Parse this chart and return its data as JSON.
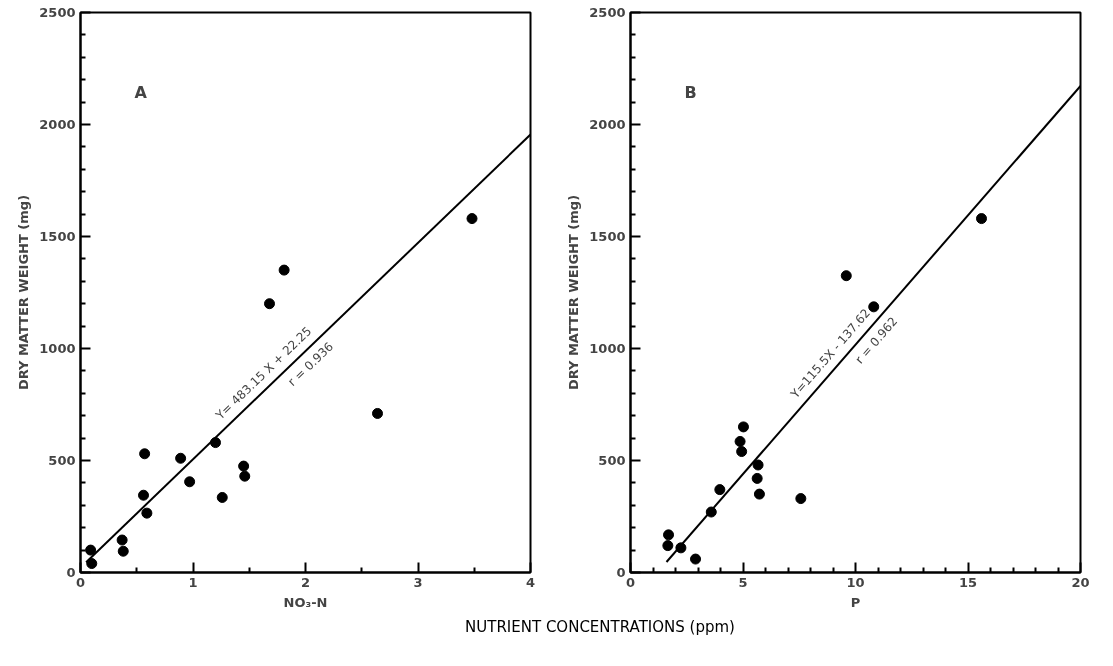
{
  "chart_data": [
    {
      "type": "scatter",
      "title": "A",
      "xlabel": "NO₃-N",
      "ylabel": "DRY MATTER WEIGHT (mg)",
      "marker": "circle",
      "grid": false,
      "xlim": [
        0,
        4
      ],
      "ylim": [
        0,
        2500
      ],
      "xticks": [
        0,
        {
          "value": 0.5,
          "label": null
        },
        1,
        {
          "value": 1.5,
          "label": null
        },
        2,
        {
          "value": 2.5,
          "label": null
        },
        3,
        {
          "value": 3.5,
          "label": null
        },
        4
      ],
      "yticks": [
        0,
        {
          "value": 100,
          "label": null
        },
        {
          "value": 200,
          "label": null
        },
        {
          "value": 300,
          "label": null
        },
        {
          "value": 400,
          "label": null
        },
        500,
        {
          "value": 600,
          "label": null
        },
        {
          "value": 700,
          "label": null
        },
        {
          "value": 800,
          "label": null
        },
        {
          "value": 900,
          "label": null
        },
        1000,
        {
          "value": 1100,
          "label": null
        },
        {
          "value": 1200,
          "label": null
        },
        {
          "value": 1300,
          "label": null
        },
        {
          "value": 1400,
          "label": null
        },
        1500,
        {
          "value": 1600,
          "label": null
        },
        {
          "value": 1700,
          "label": null
        },
        {
          "value": 1800,
          "label": null
        },
        {
          "value": 1900,
          "label": null
        },
        2000,
        {
          "value": 2100,
          "label": null
        },
        {
          "value": 2200,
          "label": null
        },
        {
          "value": 2300,
          "label": null
        },
        {
          "value": 2400,
          "label": null
        },
        2500
      ],
      "series": [
        {
          "color": "#000000",
          "x": [
            0.09,
            0.1,
            0.37,
            0.38,
            0.57,
            0.56,
            0.59,
            0.89,
            0.97,
            1.2,
            1.26,
            1.45,
            1.46,
            1.68,
            1.81,
            2.64,
            3.48
          ],
          "values": [
            100,
            40,
            145,
            95,
            530,
            345,
            265,
            510,
            405,
            580,
            335,
            475,
            430,
            1200,
            1350,
            710,
            1580
          ]
        },
        {
          "type": "line",
          "color": "#000000",
          "line_style": "solid",
          "marker": "none",
          "x": [
            0.05,
            4
          ],
          "values": [
            46,
            1955
          ]
        }
      ],
      "annotations": [
        "Y= 483.15 X + 22.25",
        "r = 0.936",
        "NUTRIENT  CONCENTRATIONS (ppm)"
      ]
    },
    {
      "type": "scatter",
      "title": "B",
      "xlabel": "P",
      "ylabel": "DRY MATTER WEIGHT (mg)",
      "marker": "circle",
      "grid": false,
      "xlim": [
        0,
        20
      ],
      "ylim": [
        0,
        2500
      ],
      "xticks": [
        0,
        {
          "value": 1,
          "label": null
        },
        {
          "value": 2,
          "label": null
        },
        {
          "value": 3,
          "label": null
        },
        {
          "value": 4,
          "label": null
        },
        5,
        {
          "value": 6,
          "label": null
        },
        {
          "value": 7,
          "label": null
        },
        {
          "value": 8,
          "label": null
        },
        {
          "value": 9,
          "label": null
        },
        10,
        {
          "value": 11,
          "label": null
        },
        {
          "value": 12,
          "label": null
        },
        {
          "value": 13,
          "label": null
        },
        {
          "value": 14,
          "label": null
        },
        15,
        {
          "value": 16,
          "label": null
        },
        {
          "value": 17,
          "label": null
        },
        {
          "value": 18,
          "label": null
        },
        {
          "value": 19,
          "label": null
        },
        20
      ],
      "yticks": [
        0,
        {
          "value": 100,
          "label": null
        },
        {
          "value": 200,
          "label": null
        },
        {
          "value": 300,
          "label": null
        },
        {
          "value": 400,
          "label": null
        },
        500,
        {
          "value": 600,
          "label": null
        },
        {
          "value": 700,
          "label": null
        },
        {
          "value": 800,
          "label": null
        },
        {
          "value": 900,
          "label": null
        },
        1000,
        {
          "value": 1100,
          "label": null
        },
        {
          "value": 1200,
          "label": null
        },
        {
          "value": 1300,
          "label": null
        },
        {
          "value": 1400,
          "label": null
        },
        1500,
        {
          "value": 1600,
          "label": null
        },
        {
          "value": 1700,
          "label": null
        },
        {
          "value": 1800,
          "label": null
        },
        {
          "value": 1900,
          "label": null
        },
        2000,
        {
          "value": 2100,
          "label": null
        },
        {
          "value": 2200,
          "label": null
        },
        {
          "value": 2300,
          "label": null
        },
        {
          "value": 2400,
          "label": null
        },
        2500
      ],
      "series": [
        {
          "color": "#000000",
          "x": [
            1.69,
            1.66,
            2.24,
            2.89,
            3.59,
            3.97,
            4.87,
            4.94,
            5.02,
            5.67,
            5.63,
            5.73,
            7.57,
            9.59,
            10.81,
            15.6
          ],
          "values": [
            168,
            120,
            110,
            60,
            270,
            370,
            585,
            540,
            650,
            480,
            420,
            350,
            330,
            1325,
            1186,
            1580
          ]
        },
        {
          "type": "line",
          "color": "#000000",
          "line_style": "solid",
          "marker": "none",
          "x": [
            1.6,
            20
          ],
          "values": [
            47,
            2172
          ]
        }
      ],
      "annotations": [
        "Y=115.5X - 137.62",
        "r = 0.962"
      ]
    }
  ]
}
